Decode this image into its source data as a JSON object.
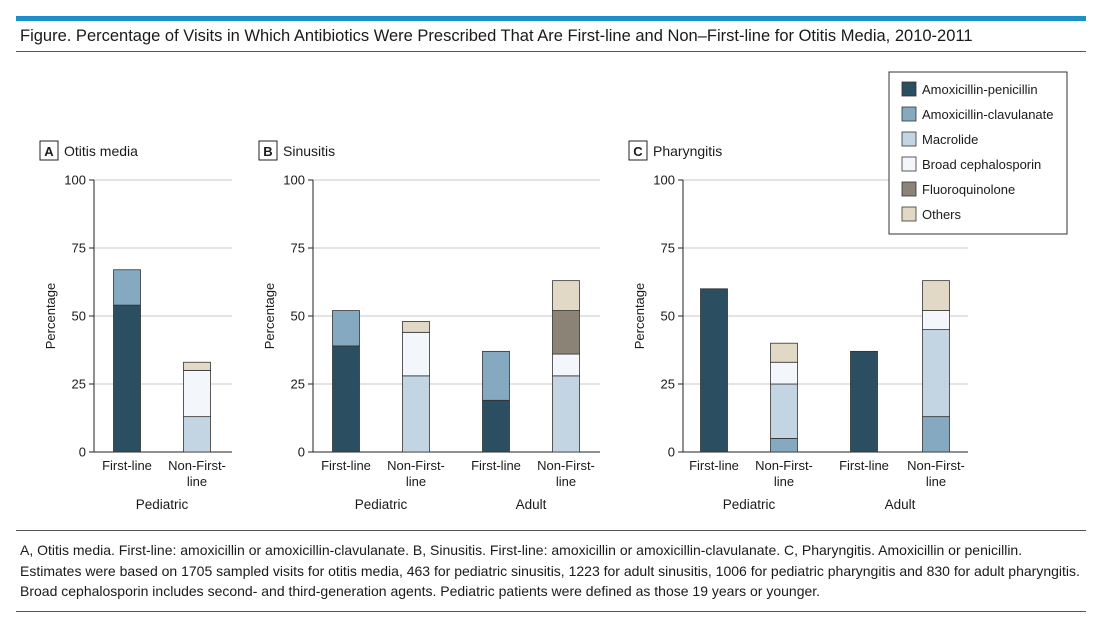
{
  "figure": {
    "title": "Figure. Percentage of Visits in Which Antibiotics Were Prescribed That Are First-line and Non–First-line for Otitis Media, 2010-2011",
    "caption": "A, Otitis media. First-line: amoxicillin or amoxicillin-clavulanate. B, Sinusitis. First-line: amoxicillin or amoxicillin-clavulanate. C, Pharyngitis. Amoxicillin or penicillin. Estimates were based on 1705 sampled visits for otitis media, 463 for pediatric sinusitis, 1223 for adult sinusitis, 1006 for pediatric pharyngitis and 830 for adult pharyngitis. Broad cephalosporin includes second- and third-generation agents. Pediatric patients were defined as those 19 years or younger."
  },
  "legend": {
    "items": [
      {
        "label": "Amoxicillin-penicillin",
        "color": "#2b4e60"
      },
      {
        "label": "Amoxicillin-clavulanate",
        "color": "#84a9c0"
      },
      {
        "label": "Macrolide",
        "color": "#c3d4e2"
      },
      {
        "label": "Broad cephalosporin",
        "color": "#f3f6fa"
      },
      {
        "label": "Fluoroquinolone",
        "color": "#8b8376"
      },
      {
        "label": "Others",
        "color": "#e2d8c6"
      }
    ]
  },
  "chart_data": [
    {
      "type": "bar",
      "stacked": true,
      "panel": "A",
      "title": "Otitis media",
      "ylabel": "Percentage",
      "ylim": [
        0,
        100
      ],
      "yticks": [
        0,
        25,
        50,
        75,
        100
      ],
      "grid": true,
      "categories": [
        "First-line",
        "Non-First-line"
      ],
      "groups": [
        {
          "label": "Pediatric",
          "categories": [
            "First-line",
            "Non-First-line"
          ]
        }
      ],
      "series": [
        {
          "name": "Amoxicillin-penicillin",
          "values": [
            54,
            0
          ]
        },
        {
          "name": "Amoxicillin-clavulanate",
          "values": [
            13,
            0
          ]
        },
        {
          "name": "Macrolide",
          "values": [
            0,
            13
          ]
        },
        {
          "name": "Broad cephalosporin",
          "values": [
            0,
            17
          ]
        },
        {
          "name": "Fluoroquinolone",
          "values": [
            0,
            0
          ]
        },
        {
          "name": "Others",
          "values": [
            0,
            3
          ]
        }
      ]
    },
    {
      "type": "bar",
      "stacked": true,
      "panel": "B",
      "title": "Sinusitis",
      "ylabel": "Percentage",
      "ylim": [
        0,
        100
      ],
      "yticks": [
        0,
        25,
        50,
        75,
        100
      ],
      "grid": true,
      "categories": [
        "First-line",
        "Non-First-line",
        "First-line",
        "Non-First-line"
      ],
      "groups": [
        {
          "label": "Pediatric",
          "categories": [
            "First-line",
            "Non-First-line"
          ]
        },
        {
          "label": "Adult",
          "categories": [
            "First-line",
            "Non-First-line"
          ]
        }
      ],
      "series": [
        {
          "name": "Amoxicillin-penicillin",
          "values": [
            39,
            0,
            19,
            0
          ]
        },
        {
          "name": "Amoxicillin-clavulanate",
          "values": [
            13,
            0,
            18,
            0
          ]
        },
        {
          "name": "Macrolide",
          "values": [
            0,
            28,
            0,
            28
          ]
        },
        {
          "name": "Broad cephalosporin",
          "values": [
            0,
            16,
            0,
            8
          ]
        },
        {
          "name": "Fluoroquinolone",
          "values": [
            0,
            0,
            0,
            16
          ]
        },
        {
          "name": "Others",
          "values": [
            0,
            4,
            0,
            11
          ]
        }
      ]
    },
    {
      "type": "bar",
      "stacked": true,
      "panel": "C",
      "title": "Pharyngitis",
      "ylabel": "Percentage",
      "ylim": [
        0,
        100
      ],
      "yticks": [
        0,
        25,
        50,
        75,
        100
      ],
      "grid": true,
      "categories": [
        "First-line",
        "Non-First-line",
        "First-line",
        "Non-First-line"
      ],
      "groups": [
        {
          "label": "Pediatric",
          "categories": [
            "First-line",
            "Non-First-line"
          ]
        },
        {
          "label": "Adult",
          "categories": [
            "First-line",
            "Non-First-line"
          ]
        }
      ],
      "series": [
        {
          "name": "Amoxicillin-penicillin",
          "values": [
            60,
            0,
            37,
            0
          ]
        },
        {
          "name": "Amoxicillin-clavulanate",
          "values": [
            0,
            5,
            0,
            13
          ]
        },
        {
          "name": "Macrolide",
          "values": [
            0,
            20,
            0,
            32
          ]
        },
        {
          "name": "Broad cephalosporin",
          "values": [
            0,
            8,
            0,
            7
          ]
        },
        {
          "name": "Fluoroquinolone",
          "values": [
            0,
            0,
            0,
            0
          ]
        },
        {
          "name": "Others",
          "values": [
            0,
            7,
            0,
            11
          ]
        }
      ]
    }
  ]
}
